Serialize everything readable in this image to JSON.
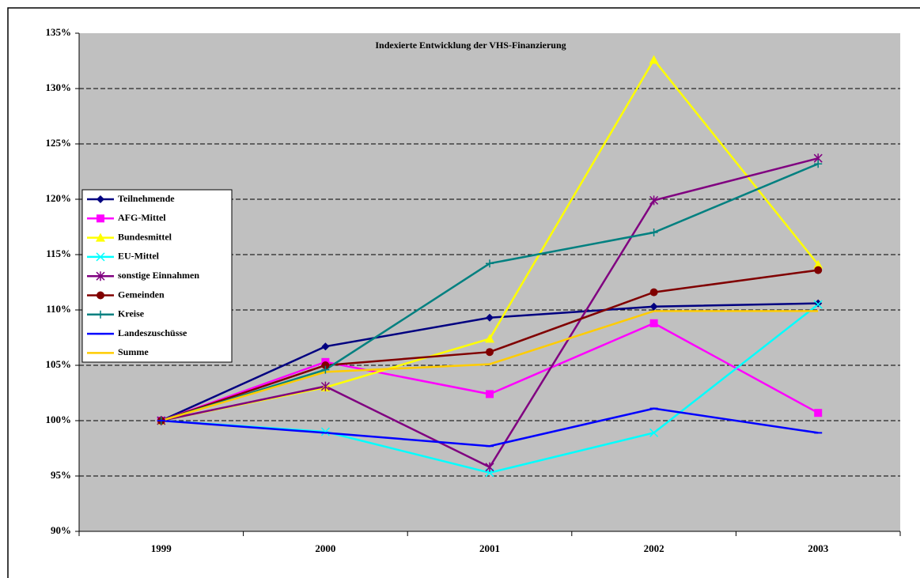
{
  "chart_data": {
    "type": "line",
    "title": "Indexierte Entwicklung der VHS-Finanzierung",
    "categories": [
      "1999",
      "2000",
      "2001",
      "2002",
      "2003"
    ],
    "series": [
      {
        "name": "Teilnehmende",
        "color": "#000080",
        "marker": "diamond",
        "values": [
          100,
          106.7,
          109.3,
          110.3,
          110.6
        ]
      },
      {
        "name": "AFG-Mittel",
        "color": "#FF00FF",
        "marker": "square",
        "values": [
          100,
          105.3,
          102.4,
          108.8,
          100.7
        ]
      },
      {
        "name": "Bundesmittel",
        "color": "#FFFF00",
        "marker": "triangle",
        "values": [
          100,
          103.0,
          107.4,
          132.6,
          114.1
        ]
      },
      {
        "name": "EU-Mittel",
        "color": "#00FFFF",
        "marker": "x",
        "values": [
          100,
          99.0,
          95.3,
          98.9,
          110.5
        ]
      },
      {
        "name": "sonstige Einnahmen",
        "color": "#800080",
        "marker": "star",
        "values": [
          100,
          103.1,
          95.8,
          119.9,
          123.7
        ]
      },
      {
        "name": "Gemeinden",
        "color": "#800000",
        "marker": "circle",
        "values": [
          100,
          105.0,
          106.2,
          111.6,
          113.6
        ]
      },
      {
        "name": "Kreise",
        "color": "#008080",
        "marker": "plus",
        "values": [
          100,
          104.6,
          114.2,
          117.0,
          123.2
        ]
      },
      {
        "name": "Landeszuschüsse",
        "color": "#0000FF",
        "marker": "dash",
        "values": [
          100,
          98.9,
          97.7,
          101.1,
          98.9
        ]
      },
      {
        "name": "Summe",
        "color": "#FFCC00",
        "marker": "none",
        "values": [
          100,
          104.4,
          105.1,
          109.9,
          109.9
        ]
      }
    ],
    "ylim": [
      90,
      135
    ],
    "yticks": [
      {
        "value": 90,
        "label": "90%"
      },
      {
        "value": 95,
        "label": "95%"
      },
      {
        "value": 100,
        "label": "100%"
      },
      {
        "value": 105,
        "label": "105%"
      },
      {
        "value": 110,
        "label": "110%"
      },
      {
        "value": 115,
        "label": "115%"
      },
      {
        "value": 120,
        "label": "120%"
      },
      {
        "value": 125,
        "label": "125%"
      },
      {
        "value": 130,
        "label": "130%"
      },
      {
        "value": 135,
        "label": "135%"
      }
    ],
    "grid": true,
    "legend": "left"
  }
}
